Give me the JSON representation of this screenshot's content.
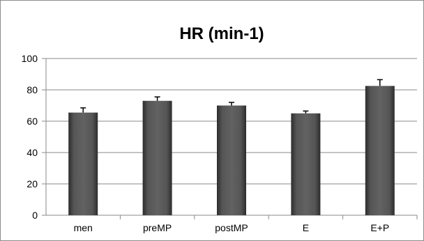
{
  "chart_data": {
    "type": "bar",
    "title": "HR (min-1)",
    "xlabel": "",
    "ylabel": "",
    "categories": [
      "men",
      "preMP",
      "postMP",
      "E",
      "E+P"
    ],
    "values": [
      65.5,
      73,
      70,
      65,
      82.5
    ],
    "error_upper": [
      3,
      2.5,
      2,
      1.5,
      4
    ],
    "ylim": [
      0,
      100
    ],
    "yticks": [
      0,
      20,
      40,
      60,
      80,
      100
    ],
    "grid": true,
    "legend": "none",
    "bar_color": "#555555"
  }
}
